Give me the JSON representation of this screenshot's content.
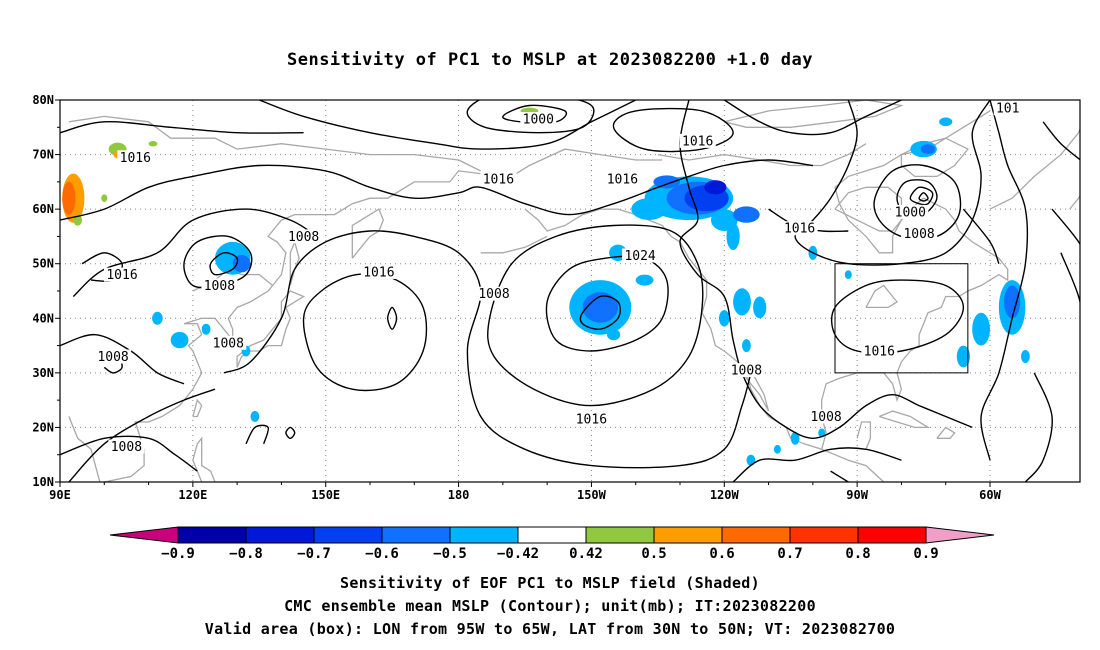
{
  "title": "Sensitivity of PC1 to MSLP at 2023082200 +1.0 day",
  "axes": {
    "lon_labels": [
      "90E",
      "120E",
      "150E",
      "180",
      "150W",
      "120W",
      "90W",
      "60W"
    ],
    "lat_labels": [
      "80N",
      "70N",
      "60N",
      "50N",
      "40N",
      "30N",
      "20N",
      "10N"
    ]
  },
  "contour_labels": [
    {
      "text": "1000",
      "lon": -162,
      "lat": 76.5
    },
    {
      "text": "1016",
      "lon": -126,
      "lat": 72.5
    },
    {
      "text": "1016",
      "lon": 107,
      "lat": 69.5
    },
    {
      "text": "1016",
      "lon": -171,
      "lat": 65.5
    },
    {
      "text": "1016",
      "lon": -143,
      "lat": 65.5
    },
    {
      "text": "1000",
      "lon": -78,
      "lat": 59.5
    },
    {
      "text": "1008",
      "lon": -76,
      "lat": 55.5
    },
    {
      "text": "1016",
      "lon": -103,
      "lat": 56.5
    },
    {
      "text": "1008",
      "lon": 126,
      "lat": 46
    },
    {
      "text": "1008",
      "lon": 145,
      "lat": 55
    },
    {
      "text": "1016",
      "lon": 104,
      "lat": 48
    },
    {
      "text": "1016",
      "lon": 162,
      "lat": 48.5
    },
    {
      "text": "1008",
      "lon": -172,
      "lat": 44.5
    },
    {
      "text": "1024",
      "lon": -139,
      "lat": 51.5
    },
    {
      "text": "1008",
      "lon": 128,
      "lat": 35.5
    },
    {
      "text": "1008",
      "lon": 102,
      "lat": 33
    },
    {
      "text": "1016",
      "lon": -85,
      "lat": 34
    },
    {
      "text": "1008",
      "lon": -115,
      "lat": 30.5
    },
    {
      "text": "1016",
      "lon": -150,
      "lat": 21.5
    },
    {
      "text": "1008",
      "lon": -97,
      "lat": 22
    },
    {
      "text": "1008",
      "lon": 105,
      "lat": 16.5
    },
    {
      "text": "101",
      "lon": -56,
      "lat": 78.5
    }
  ],
  "valid_box": {
    "lon_min": -95,
    "lon_max": -65,
    "lat_min": 30,
    "lat_max": 50
  },
  "colorbar": {
    "labels": [
      "-0.9",
      "-0.8",
      "-0.7",
      "-0.6",
      "-0.5",
      "-0.42",
      "0.42",
      "0.5",
      "0.6",
      "0.7",
      "0.8",
      "0.9"
    ],
    "colors": [
      "#0000a8",
      "#0018d8",
      "#0040f0",
      "#1070ff",
      "#00b4ff",
      "#ffffff",
      "#90c840",
      "#ff9c00",
      "#ff6a00",
      "#ff3200",
      "#ff0000"
    ],
    "low_cap_color": "#c8007c",
    "high_cap_color": "#f0a0c8"
  },
  "captions": {
    "line1": "Sensitivity of EOF PC1 to MSLP field (Shaded)",
    "line2": "CMC ensemble mean MSLP (Contour); unit(mb); IT:2023082200",
    "line3": "Valid area (box): LON from 95W to 65W, LAT from 30N to 50N; VT: 2023082700"
  }
}
